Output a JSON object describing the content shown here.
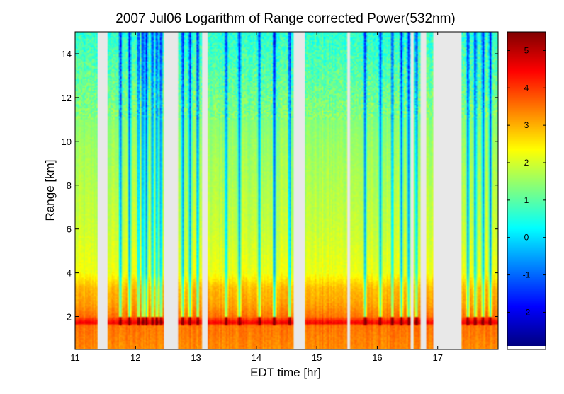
{
  "chart_data": {
    "type": "heatmap",
    "title": "2007 Jul06  Logarithm of Range corrected Power(532nm)",
    "xlabel": "EDT time [hr]",
    "ylabel": "Range [km]",
    "xlim": [
      11.0,
      18.0
    ],
    "ylim": [
      0.5,
      15.0
    ],
    "xticks": [
      11,
      12,
      13,
      14,
      15,
      16,
      17
    ],
    "yticks": [
      2,
      4,
      6,
      8,
      10,
      12,
      14
    ],
    "colorbar": {
      "colormap": "jet",
      "clim": [
        -2.9,
        5.5
      ],
      "ticks": [
        -2,
        -1,
        0,
        1,
        2,
        3,
        4,
        5
      ]
    },
    "no_data_color": "#e8e8e8",
    "data_gaps": [
      [
        11.38,
        11.53
      ],
      [
        12.48,
        12.7
      ],
      [
        13.1,
        13.2
      ],
      [
        14.21,
        14.23
      ],
      [
        14.62,
        14.81
      ],
      [
        15.5,
        15.55
      ],
      [
        16.56,
        16.6
      ],
      [
        16.72,
        16.8
      ],
      [
        16.92,
        17.4
      ]
    ],
    "background_profile": {
      "range_km": [
        0.5,
        1.6,
        1.7,
        2.0,
        2.6,
        3.3,
        4.0,
        6.0,
        8.0,
        10.0,
        12.0,
        13.5,
        15.0
      ],
      "log_power": [
        3.3,
        3.5,
        4.6,
        3.5,
        3.1,
        2.9,
        2.2,
        1.9,
        1.7,
        1.5,
        1.2,
        0.9,
        0.6
      ]
    },
    "cloud_columns": [
      11.75,
      11.9,
      12.05,
      12.12,
      12.18,
      12.28,
      12.35,
      12.42,
      12.78,
      12.9,
      13.03,
      13.5,
      13.72,
      14.05,
      14.3,
      14.55,
      15.8,
      16.05,
      16.25,
      16.4,
      16.52,
      16.65,
      17.5,
      17.62,
      17.75,
      17.87
    ],
    "cloud_base_km": 1.8
  }
}
